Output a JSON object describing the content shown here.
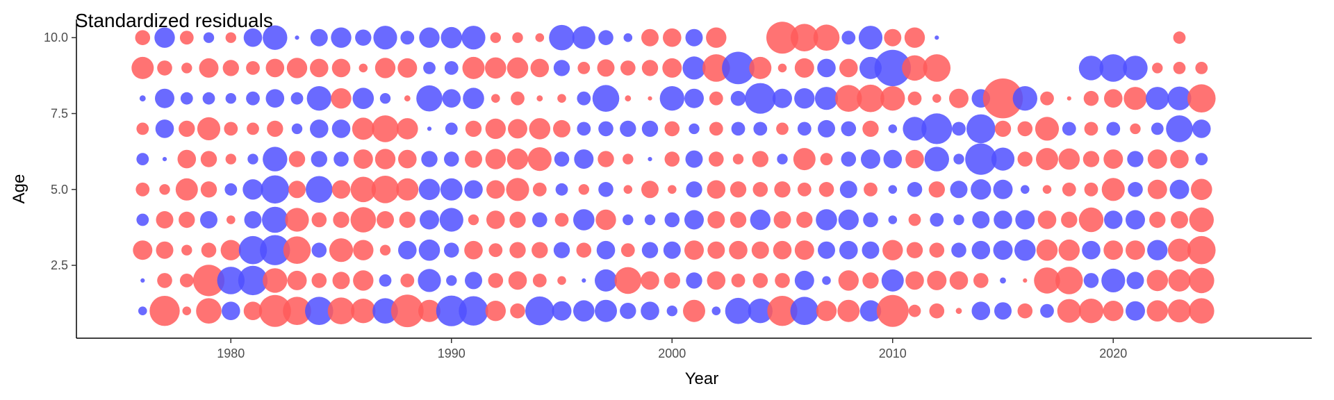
{
  "chart_data": {
    "type": "scatter",
    "title": "Standardized residuals",
    "xlabel": "Year",
    "ylabel": "Age",
    "xlim": [
      1973,
      2029
    ],
    "ylim": [
      0.1,
      10.6
    ],
    "x_ticks": [
      1980,
      1990,
      2000,
      2010,
      2020
    ],
    "y_ticks": [
      2.5,
      5.0,
      7.5,
      10.0
    ],
    "x_tick_labels": [
      "1980",
      "1990",
      "2000",
      "2010",
      "2020"
    ],
    "y_tick_labels": [
      "2.5",
      "5.0",
      "7.5",
      "10.0"
    ],
    "grid": false,
    "legend": "none",
    "colors": {
      "positive": "#ff5a5a",
      "negative": "#5050ff"
    },
    "encoding": "marker area proportional to |residual|; positive residuals red, negative residuals blue",
    "years": [
      1976,
      1977,
      1978,
      1979,
      1980,
      1981,
      1982,
      1983,
      1984,
      1985,
      1986,
      1987,
      1988,
      1989,
      1990,
      1991,
      1992,
      1993,
      1994,
      1995,
      1996,
      1997,
      1998,
      1999,
      2000,
      2001,
      2002,
      2003,
      2004,
      2005,
      2006,
      2007,
      2008,
      2009,
      2010,
      2011,
      2012,
      2013,
      2014,
      2015,
      2016,
      2017,
      2018,
      2019,
      2020,
      2021,
      2022,
      2023,
      2024
    ],
    "ages": [
      1,
      2,
      3,
      4,
      5,
      6,
      7,
      8,
      9,
      10
    ],
    "residuals": [
      [
        -0.2,
        2.4,
        0.2,
        1.7,
        -0.9,
        0.9,
        2.7,
        2.1,
        -2.1,
        1.9,
        1.6,
        -1.7,
        2.8,
        1.3,
        -2.5,
        -2.3,
        1.1,
        0.6,
        -2.2,
        -1.0,
        -1.2,
        -1.3,
        -0.7,
        -0.9,
        -0.3,
        1.3,
        -0.2,
        -1.8,
        -1.6,
        2.4,
        -2.1,
        1.1,
        1.3,
        -1.2,
        2.7,
        0.4,
        0.6,
        0.1,
        -0.9,
        -0.8,
        0.6,
        -0.5,
        1.5,
        1.6,
        1.1,
        -1.0,
        1.2,
        1.4,
        1.7
      ],
      [
        -0.05,
        0.6,
        0.5,
        2.6,
        -2.0,
        -2.3,
        1.6,
        1.0,
        0.6,
        0.8,
        1.1,
        -0.4,
        0.5,
        -1.4,
        -0.3,
        -0.8,
        0.6,
        0.9,
        0.5,
        0.2,
        -0.05,
        -1.3,
        1.9,
        0.9,
        0.7,
        -0.7,
        0.9,
        0.5,
        0.6,
        0.6,
        -1.0,
        -0.2,
        1.1,
        0.7,
        -1.3,
        0.9,
        1.0,
        0.9,
        0.6,
        -0.1,
        0.05,
        1.8,
        2.0,
        -0.6,
        -1.5,
        -0.8,
        1.2,
        1.3,
        1.7
      ],
      [
        1.0,
        0.8,
        0.3,
        0.6,
        1.1,
        -2.1,
        -2.4,
        2.0,
        -0.6,
        1.5,
        1.1,
        0.3,
        -0.9,
        -1.2,
        -0.6,
        0.9,
        0.5,
        0.7,
        0.7,
        -0.7,
        0.6,
        -0.9,
        0.5,
        -0.7,
        -0.8,
        1.0,
        0.8,
        0.9,
        0.8,
        0.9,
        1.0,
        -0.8,
        -0.9,
        -0.8,
        1.1,
        0.7,
        0.6,
        -0.6,
        -0.9,
        -1.0,
        -1.2,
        1.2,
        1.2,
        -0.9,
        1.0,
        1.0,
        -1.1,
        1.4,
        2.1
      ],
      [
        -0.4,
        0.8,
        0.7,
        -0.8,
        0.2,
        -0.8,
        -1.8,
        1.5,
        0.6,
        0.7,
        1.7,
        0.8,
        0.7,
        -1.0,
        -1.5,
        0.3,
        0.9,
        0.7,
        -0.6,
        0.5,
        -1.2,
        1.1,
        -0.3,
        -0.3,
        -0.6,
        -1.0,
        0.8,
        0.7,
        -1.1,
        0.8,
        0.7,
        -1.2,
        -1.1,
        -0.6,
        -0.2,
        0.4,
        -0.5,
        -0.3,
        -0.8,
        -0.9,
        -1.0,
        0.9,
        0.7,
        1.6,
        -0.9,
        -1.0,
        0.7,
        0.8,
        1.6
      ],
      [
        0.5,
        0.3,
        1.3,
        0.7,
        -0.4,
        -1.1,
        -2.1,
        0.8,
        -1.9,
        0.9,
        1.7,
        2.0,
        1.3,
        -1.2,
        -1.3,
        -0.9,
        0.9,
        1.4,
        0.5,
        -0.4,
        0.3,
        -0.6,
        0.2,
        0.8,
        0.2,
        -0.7,
        0.9,
        0.7,
        0.6,
        0.7,
        0.5,
        0.6,
        -0.8,
        0.5,
        -0.2,
        -0.6,
        0.7,
        -0.8,
        -1.1,
        -1.0,
        -0.2,
        0.2,
        0.5,
        0.5,
        1.4,
        -0.6,
        1.0,
        -1.0,
        1.2
      ],
      [
        -0.4,
        -0.05,
        0.9,
        0.7,
        0.3,
        -0.3,
        -1.6,
        0.7,
        -0.7,
        -0.6,
        1.0,
        1.1,
        0.9,
        -0.7,
        -0.6,
        0.8,
        1.1,
        1.2,
        1.5,
        -0.6,
        -1.0,
        0.7,
        0.3,
        -0.05,
        0.6,
        -0.8,
        0.6,
        0.3,
        0.7,
        -0.3,
        1.3,
        0.4,
        -0.6,
        -1.0,
        -0.9,
        0.9,
        -1.6,
        -0.3,
        -2.6,
        -1.4,
        0.6,
        1.3,
        1.2,
        0.7,
        1.0,
        -0.7,
        1.0,
        0.9,
        -0.4
      ],
      [
        0.4,
        -0.9,
        0.7,
        1.4,
        0.5,
        0.4,
        0.7,
        -0.3,
        -0.9,
        -0.9,
        1.3,
        1.9,
        1.2,
        -0.05,
        -0.4,
        0.7,
        1.1,
        1.0,
        1.2,
        0.8,
        -0.5,
        -0.6,
        -0.7,
        -0.7,
        0.6,
        -0.3,
        0.5,
        -0.5,
        -0.5,
        0.4,
        -0.5,
        -0.8,
        -0.6,
        0.7,
        -0.2,
        -1.5,
        -2.5,
        -0.5,
        -2.2,
        0.7,
        0.6,
        1.5,
        -0.5,
        0.5,
        -0.5,
        0.3,
        -0.4,
        -1.9,
        -0.9
      ],
      [
        -0.1,
        -1.0,
        -0.4,
        -0.4,
        -0.3,
        -0.5,
        -0.9,
        -0.4,
        -1.6,
        1.1,
        -1.2,
        -0.3,
        0.1,
        -1.8,
        -0.9,
        -1.2,
        0.2,
        0.5,
        0.1,
        0.2,
        -0.5,
        -1.9,
        0.1,
        0.05,
        -1.6,
        -1.0,
        0.5,
        -0.6,
        -2.5,
        -1.0,
        -1.1,
        -1.4,
        1.9,
        2.0,
        1.6,
        0.5,
        0.2,
        1.0,
        -0.9,
        4.2,
        -1.6,
        0.5,
        0.05,
        0.6,
        0.9,
        1.4,
        -1.4,
        -1.5,
        2.1
      ],
      [
        1.3,
        0.6,
        0.3,
        1.0,
        0.7,
        0.5,
        0.9,
        1.1,
        0.9,
        0.9,
        0.2,
        1.1,
        1.0,
        -0.4,
        -0.5,
        1.3,
        1.2,
        1.2,
        0.9,
        -0.7,
        0.4,
        0.8,
        0.6,
        0.7,
        1.0,
        -1.4,
        2.0,
        -2.8,
        1.3,
        0.2,
        1.0,
        -0.9,
        0.9,
        -1.3,
        -3.5,
        1.7,
        2.0,
        0,
        0,
        0,
        0,
        0,
        0,
        -1.6,
        -2.0,
        -1.6,
        0.3,
        0.4,
        0.4
      ],
      [
        0.6,
        -1.1,
        0.5,
        -0.3,
        0.3,
        -0.9,
        -1.6,
        -0.05,
        -0.8,
        -1.1,
        -0.7,
        -1.5,
        -0.5,
        -1.1,
        -1.2,
        -1.5,
        0.3,
        0.3,
        0.2,
        -1.7,
        -1.4,
        -0.6,
        -0.2,
        0.8,
        0.9,
        -0.8,
        1.1,
        0,
        0,
        2.7,
        2.0,
        1.8,
        -0.5,
        -1.5,
        0.8,
        1.1,
        -0.05,
        0,
        0,
        0,
        0,
        0,
        0,
        0,
        0,
        0,
        0,
        0.4,
        0
      ]
    ]
  }
}
